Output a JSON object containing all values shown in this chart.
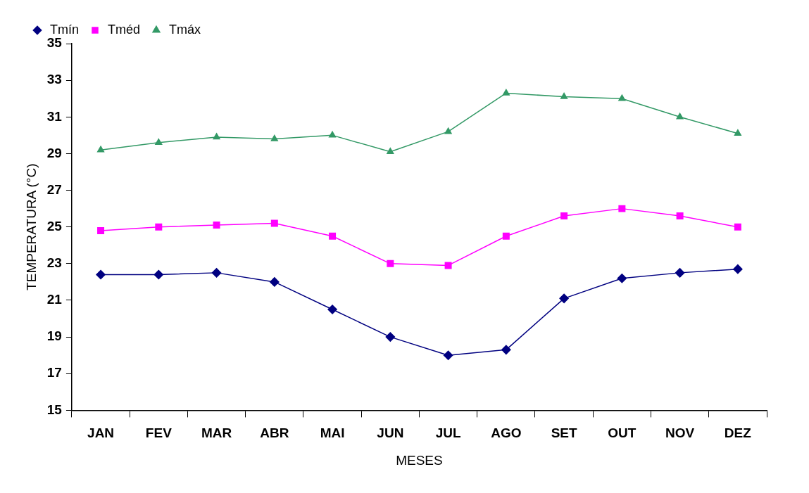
{
  "chart_data": {
    "type": "line",
    "xlabel": "MESES",
    "ylabel": "TEMPERATURA (°C)",
    "categories": [
      "JAN",
      "FEV",
      "MAR",
      "ABR",
      "MAI",
      "JUN",
      "JUL",
      "AGO",
      "SET",
      "OUT",
      "NOV",
      "DEZ"
    ],
    "series": [
      {
        "name": "Tmín",
        "color": "#000080",
        "marker": "diamond",
        "values": [
          22.4,
          22.4,
          22.5,
          22.0,
          20.5,
          19.0,
          18.0,
          18.3,
          21.1,
          22.2,
          22.5,
          22.7
        ]
      },
      {
        "name": "Tméd",
        "color": "#ff00ff",
        "marker": "square",
        "values": [
          24.8,
          25.0,
          25.1,
          25.2,
          24.5,
          23.0,
          22.9,
          24.5,
          25.6,
          26.0,
          25.6,
          25.0
        ]
      },
      {
        "name": "Tmáx",
        "color": "#339966",
        "marker": "triangle",
        "values": [
          29.2,
          29.6,
          29.9,
          29.8,
          30.0,
          29.1,
          30.2,
          32.3,
          32.1,
          32.0,
          31.0,
          30.1
        ]
      }
    ],
    "ylim": [
      15,
      35
    ],
    "yticks": [
      15,
      17,
      19,
      21,
      23,
      25,
      27,
      29,
      31,
      33,
      35
    ],
    "grid": false,
    "legend": "top left",
    "line_style": "solid"
  }
}
